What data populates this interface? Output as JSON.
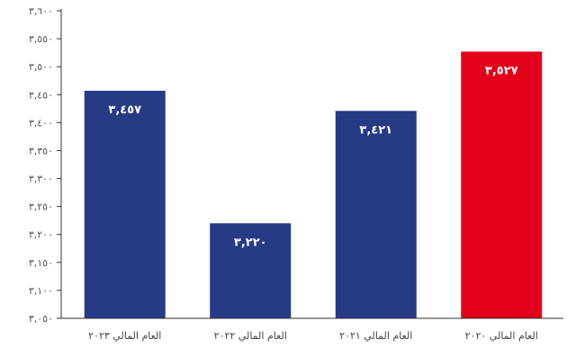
{
  "chart_data": {
    "type": "bar",
    "title": "",
    "xlabel": "",
    "ylabel": "",
    "ylim": [
      3050,
      3600
    ],
    "y_ticks": [
      3050,
      3100,
      3150,
      3200,
      3250,
      3300,
      3350,
      3400,
      3450,
      3500,
      3550,
      3600
    ],
    "y_tick_labels": [
      "٣,٠٥٠",
      "٣,١٠٠",
      "٣,١٥٠",
      "٣,٢٠٠",
      "٣,٢٥٠",
      "٣,٣٠٠",
      "٣,٣٥٠",
      "٣,٤٠٠",
      "٣,٤٥٠",
      "٣,٥٠٠",
      "٣,٥٥٠",
      "٣,٦٠٠"
    ],
    "categories": [
      "العام المالي ٢٠٢٣",
      "العام المالي ٢٠٢٢",
      "العام المالي ٢٠٢١",
      "العام المالي ٢٠٢٠"
    ],
    "values": [
      3457,
      3220,
      3421,
      3527
    ],
    "data_labels": [
      "٣,٤٥٧",
      "٣,٢٢٠",
      "٣,٤٢١",
      "٣,٥٢٧"
    ],
    "colors": [
      "#273a86",
      "#273a86",
      "#273a86",
      "#e3001b"
    ],
    "grid": false,
    "legend": "none"
  }
}
